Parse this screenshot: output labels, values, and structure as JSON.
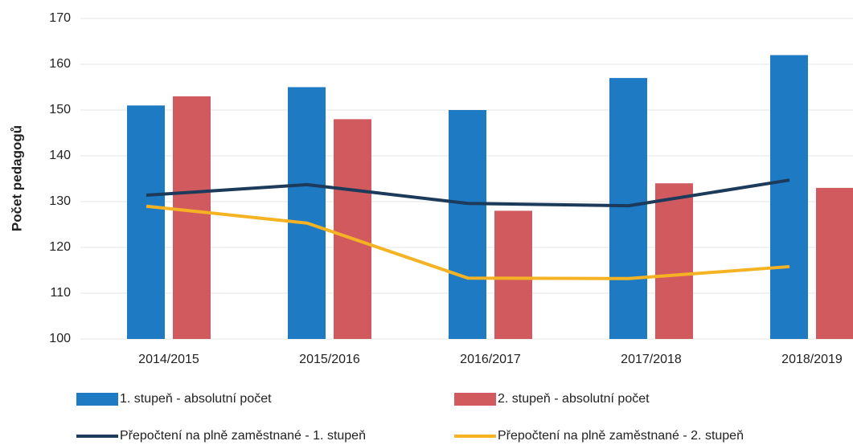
{
  "chart_data": {
    "type": "bar_line",
    "y_label": "Počet pedagogů",
    "categories": [
      "2014/2015",
      "2015/2016",
      "2016/2017",
      "2017/2018",
      "2018/2019"
    ],
    "series": [
      {
        "name": "1. stupeň - absolutní počet",
        "color": "#1f7ac4",
        "kind": "bar",
        "values": [
          151,
          155,
          150,
          157,
          162
        ]
      },
      {
        "name": "2. stupeň - absolutní počet",
        "color": "#d05a5e",
        "kind": "bar",
        "values": [
          153,
          148,
          128,
          134,
          133
        ]
      },
      {
        "name": "Přepočtení na plně zaměstnané - 1. stupeň",
        "color": "#1c3a5a",
        "kind": "line",
        "values": [
          131.4,
          133.7,
          129.6,
          129.1,
          134.7
        ]
      },
      {
        "name": "Přepočtení na plně zaměstnané - 2. stupeň",
        "color": "#f5b324",
        "kind": "line",
        "values": [
          129,
          125.3,
          113.3,
          113.2,
          115.8
        ]
      }
    ],
    "ylim": [
      100,
      170
    ],
    "yticks": [
      100,
      110,
      120,
      130,
      140,
      150,
      160,
      170
    ],
    "grid": true
  }
}
